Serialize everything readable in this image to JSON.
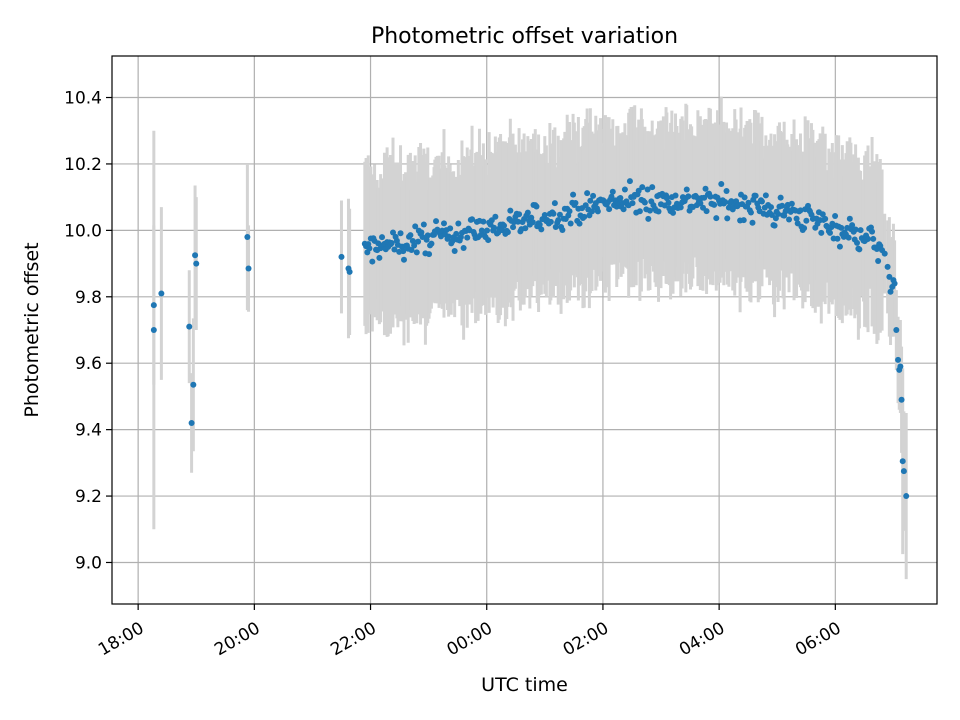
{
  "chart_data": {
    "type": "scatter",
    "title": "Photometric offset variation",
    "xlabel": "UTC time",
    "ylabel": "Photometric offset",
    "x_unit": "hours (UTC, continuing past midnight: 24 = 00:00, 30 = 06:00)",
    "x_ticks": [
      {
        "value": 18,
        "label": "18:00"
      },
      {
        "value": 20,
        "label": "20:00"
      },
      {
        "value": 22,
        "label": "22:00"
      },
      {
        "value": 24,
        "label": "00:00"
      },
      {
        "value": 26,
        "label": "02:00"
      },
      {
        "value": 28,
        "label": "04:00"
      },
      {
        "value": 30,
        "label": "06:00"
      }
    ],
    "y_ticks": [
      9.0,
      9.2,
      9.4,
      9.6,
      9.8,
      10.0,
      10.2,
      10.4
    ],
    "y_tick_labels": [
      "9.0",
      "9.2",
      "9.4",
      "9.6",
      "9.8",
      "10.0",
      "10.2",
      "10.4"
    ],
    "xlim": [
      17.55,
      31.75
    ],
    "ylim": [
      8.875,
      10.525
    ],
    "grid": true,
    "marker_color": "#1f77b4",
    "errorbar_color": "#d3d3d3",
    "early_points": [
      {
        "x": 18.27,
        "y": 9.775,
        "err": 0.24
      },
      {
        "x": 18.27,
        "y": 9.7,
        "err": 0.6
      },
      {
        "x": 18.4,
        "y": 9.81,
        "err": 0.26
      },
      {
        "x": 18.88,
        "y": 9.71,
        "err": 0.17
      },
      {
        "x": 18.92,
        "y": 9.42,
        "err": 0.15
      },
      {
        "x": 18.95,
        "y": 9.535,
        "err": 0.2
      },
      {
        "x": 18.98,
        "y": 9.925,
        "err": 0.21
      },
      {
        "x": 19.0,
        "y": 9.9,
        "err": 0.2
      },
      {
        "x": 19.88,
        "y": 9.98,
        "err": 0.22
      },
      {
        "x": 19.9,
        "y": 9.885,
        "err": 0.13
      },
      {
        "x": 21.5,
        "y": 9.92,
        "err": 0.17
      },
      {
        "x": 21.62,
        "y": 9.885,
        "err": 0.21
      },
      {
        "x": 21.64,
        "y": 9.875,
        "err": 0.19
      }
    ],
    "main_series": {
      "x_start": 21.9,
      "x_end": 30.8,
      "trend_x": [
        21.9,
        22.5,
        23.0,
        23.5,
        24.0,
        24.5,
        25.0,
        25.5,
        26.0,
        26.5,
        27.0,
        27.5,
        28.0,
        28.5,
        29.0,
        29.5,
        30.0,
        30.5,
        30.8
      ],
      "trend_y": [
        9.94,
        9.96,
        9.975,
        9.99,
        10.005,
        10.02,
        10.04,
        10.06,
        10.08,
        10.09,
        10.09,
        10.09,
        10.085,
        10.075,
        10.06,
        10.04,
        10.01,
        9.98,
        9.95
      ],
      "typical_err": 0.22,
      "n_points": 420
    },
    "tail_points": [
      {
        "x": 30.85,
        "y": 9.93,
        "err": 0.12
      },
      {
        "x": 30.9,
        "y": 9.89,
        "err": 0.14
      },
      {
        "x": 30.93,
        "y": 9.86,
        "err": 0.18
      },
      {
        "x": 30.95,
        "y": 9.815,
        "err": 0.16
      },
      {
        "x": 30.98,
        "y": 9.83,
        "err": 0.15
      },
      {
        "x": 31.0,
        "y": 9.85,
        "err": 0.17
      },
      {
        "x": 31.02,
        "y": 9.84,
        "err": 0.13
      },
      {
        "x": 31.05,
        "y": 9.7,
        "err": 0.12
      },
      {
        "x": 31.08,
        "y": 9.61,
        "err": 0.13
      },
      {
        "x": 31.1,
        "y": 9.58,
        "err": 0.12
      },
      {
        "x": 31.12,
        "y": 9.59,
        "err": 0.14
      },
      {
        "x": 31.14,
        "y": 9.49,
        "err": 0.16
      },
      {
        "x": 31.16,
        "y": 9.305,
        "err": 0.28
      },
      {
        "x": 31.18,
        "y": 9.275,
        "err": 0.18
      },
      {
        "x": 31.22,
        "y": 9.2,
        "err": 0.25
      }
    ]
  }
}
